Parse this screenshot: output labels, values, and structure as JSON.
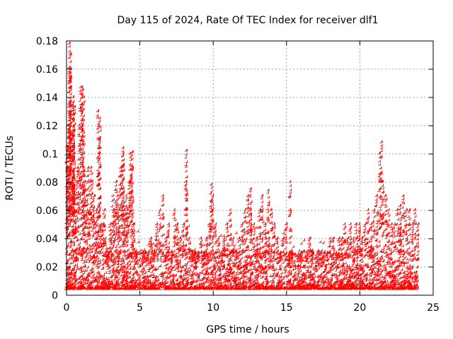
{
  "chart_data": {
    "type": "scatter",
    "title": "Day 115 of 2024, Rate Of TEC Index for receiver dlf1",
    "xlabel": "GPS time / hours",
    "ylabel": "ROTI / TECUs",
    "xlim": [
      0,
      25
    ],
    "ylim": [
      0,
      0.18
    ],
    "xticks": [
      0,
      5,
      10,
      15,
      20,
      25
    ],
    "yticks": [
      0,
      0.02,
      0.04,
      0.06,
      0.08,
      0.1,
      0.12,
      0.14,
      0.16,
      0.18
    ],
    "xtick_labels": [
      "0",
      "5",
      "10",
      "15",
      "20",
      "25"
    ],
    "ytick_labels": [
      "0",
      "0.02",
      "0.04",
      "0.06",
      "0.08",
      "0.1",
      "0.12",
      "0.14",
      "0.16",
      "0.18"
    ],
    "grid": true,
    "marker": "+",
    "color": "#ff0000",
    "series": [
      {
        "name": "dlf1",
        "x": [
          0.05,
          0.1,
          0.15,
          0.2,
          0.25,
          0.3,
          0.35,
          0.4,
          0.45,
          0.5,
          0.55,
          0.6,
          0.7,
          0.8,
          0.9,
          1.0,
          1.1,
          1.2,
          1.3,
          1.4,
          1.5,
          1.6,
          1.7,
          1.8,
          1.9,
          2.0,
          2.1,
          2.2,
          2.3,
          2.4,
          2.5,
          2.6,
          2.7,
          2.8,
          2.9,
          3.0,
          3.1,
          3.2,
          3.3,
          3.4,
          3.5,
          3.6,
          3.7,
          3.8,
          3.9,
          4.0,
          4.1,
          4.2,
          4.3,
          4.4,
          4.5,
          4.6,
          4.7,
          4.8,
          5.0,
          5.2,
          5.4,
          5.6,
          5.8,
          6.0,
          6.2,
          6.4,
          6.6,
          6.8,
          7.0,
          7.2,
          7.4,
          7.6,
          7.8,
          8.0,
          8.2,
          8.4,
          8.6,
          8.8,
          9.0,
          9.2,
          9.4,
          9.6,
          9.8,
          10.0,
          10.2,
          10.4,
          10.6,
          10.8,
          11.0,
          11.2,
          11.4,
          11.6,
          11.8,
          12.0,
          12.2,
          12.4,
          12.6,
          12.8,
          13.0,
          13.2,
          13.4,
          13.6,
          13.8,
          14.0,
          14.2,
          14.4,
          14.6,
          14.8,
          15.0,
          15.2,
          15.4,
          15.6,
          15.8,
          16.0,
          16.2,
          16.4,
          16.6,
          16.8,
          17.0,
          17.2,
          17.4,
          17.6,
          17.8,
          18.0,
          18.2,
          18.4,
          18.6,
          18.8,
          19.0,
          19.2,
          19.4,
          19.6,
          19.8,
          20.0,
          20.2,
          20.4,
          20.6,
          20.8,
          21.0,
          21.2,
          21.4,
          21.6,
          21.8,
          22.0,
          22.2,
          22.4,
          22.6,
          22.8,
          23.0,
          23.2,
          23.4,
          23.6,
          23.8,
          24.0,
          0.25,
          0.3,
          0.5,
          0.55,
          1.1,
          1.2,
          2.3,
          3.9,
          4.5,
          8.2,
          21.5,
          22.8,
          9.9,
          12.6,
          13.8,
          15.3
        ],
        "y": [
          0.105,
          0.09,
          0.12,
          0.118,
          0.178,
          0.16,
          0.11,
          0.08,
          0.135,
          0.14,
          0.1,
          0.07,
          0.08,
          0.09,
          0.12,
          0.147,
          0.145,
          0.09,
          0.08,
          0.07,
          0.09,
          0.06,
          0.09,
          0.08,
          0.07,
          0.05,
          0.06,
          0.13,
          0.11,
          0.05,
          0.05,
          0.06,
          0.04,
          0.03,
          0.03,
          0.05,
          0.04,
          0.07,
          0.06,
          0.08,
          0.07,
          0.06,
          0.09,
          0.09,
          0.1,
          0.06,
          0.07,
          0.06,
          0.08,
          0.1,
          0.09,
          0.05,
          0.03,
          0.03,
          0.02,
          0.03,
          0.03,
          0.03,
          0.04,
          0.03,
          0.05,
          0.06,
          0.07,
          0.04,
          0.05,
          0.03,
          0.06,
          0.05,
          0.04,
          0.05,
          0.08,
          0.04,
          0.03,
          0.03,
          0.03,
          0.04,
          0.03,
          0.04,
          0.05,
          0.07,
          0.05,
          0.04,
          0.03,
          0.04,
          0.05,
          0.06,
          0.04,
          0.03,
          0.04,
          0.05,
          0.06,
          0.07,
          0.06,
          0.05,
          0.04,
          0.06,
          0.07,
          0.05,
          0.04,
          0.06,
          0.05,
          0.04,
          0.03,
          0.04,
          0.05,
          0.03,
          0.03,
          0.02,
          0.02,
          0.03,
          0.02,
          0.03,
          0.04,
          0.03,
          0.02,
          0.03,
          0.02,
          0.03,
          0.03,
          0.04,
          0.04,
          0.03,
          0.04,
          0.04,
          0.05,
          0.04,
          0.05,
          0.04,
          0.05,
          0.05,
          0.04,
          0.05,
          0.06,
          0.05,
          0.06,
          0.07,
          0.1,
          0.08,
          0.07,
          0.06,
          0.05,
          0.05,
          0.06,
          0.05,
          0.07,
          0.06,
          0.06,
          0.05,
          0.06,
          0.05,
          0.157,
          0.17,
          0.128,
          0.133,
          0.147,
          0.14,
          0.125,
          0.104,
          0.101,
          0.102,
          0.108,
          0.063,
          0.078,
          0.075,
          0.074,
          0.08
        ]
      }
    ]
  }
}
